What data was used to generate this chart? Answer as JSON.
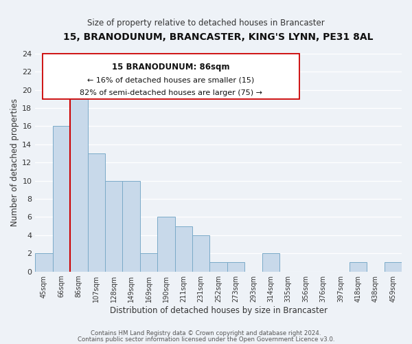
{
  "title": "15, BRANODUNUM, BRANCASTER, KING'S LYNN, PE31 8AL",
  "subtitle": "Size of property relative to detached houses in Brancaster",
  "xlabel": "Distribution of detached houses by size in Brancaster",
  "ylabel": "Number of detached properties",
  "bar_color": "#c8d9ea",
  "bar_edge_color": "#7aaac8",
  "highlight_color": "#cc0000",
  "background_color": "#eef2f7",
  "grid_color": "white",
  "categories": [
    "45sqm",
    "66sqm",
    "86sqm",
    "107sqm",
    "128sqm",
    "149sqm",
    "169sqm",
    "190sqm",
    "211sqm",
    "231sqm",
    "252sqm",
    "273sqm",
    "293sqm",
    "314sqm",
    "335sqm",
    "356sqm",
    "376sqm",
    "397sqm",
    "418sqm",
    "438sqm",
    "459sqm"
  ],
  "values": [
    2,
    16,
    19,
    13,
    10,
    10,
    2,
    6,
    5,
    4,
    1,
    1,
    0,
    2,
    0,
    0,
    0,
    0,
    1,
    0,
    1
  ],
  "highlight_index": 2,
  "annotation_title": "15 BRANODUNUM: 86sqm",
  "annotation_line1": "← 16% of detached houses are smaller (15)",
  "annotation_line2": "82% of semi-detached houses are larger (75) →",
  "ylim": [
    0,
    24
  ],
  "yticks": [
    0,
    2,
    4,
    6,
    8,
    10,
    12,
    14,
    16,
    18,
    20,
    22,
    24
  ],
  "footnote1": "Contains HM Land Registry data © Crown copyright and database right 2024.",
  "footnote2": "Contains public sector information licensed under the Open Government Licence v3.0."
}
